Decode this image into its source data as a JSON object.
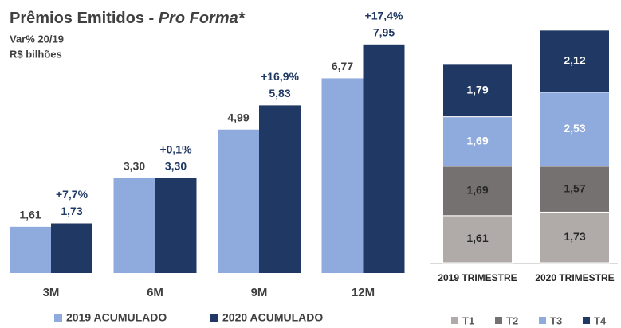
{
  "chart_data": [
    {
      "type": "bar",
      "title": [
        "Prêmios Emitidos - ",
        "Pro Forma*"
      ],
      "subtitle": [
        "Var% 20/19",
        "R$ bilhões"
      ],
      "categories": [
        "3M",
        "6M",
        "9M",
        "12M"
      ],
      "series": [
        {
          "name": "2019 ACUMULADO",
          "color": "#8faadc",
          "values": [
            1.61,
            3.3,
            4.99,
            6.77
          ],
          "value_labels": [
            "1,61",
            "3,30",
            "4,99",
            "6,77"
          ]
        },
        {
          "name": "2020 ACUMULADO",
          "color": "#1f3864",
          "values": [
            1.73,
            3.3,
            5.83,
            7.95
          ],
          "value_labels": [
            "1,73",
            "3,30",
            "5,83",
            "7,95"
          ],
          "annotations": [
            "+7,7%",
            "+0,1%",
            "+16,9%",
            "+17,4%"
          ]
        }
      ],
      "ylim": [
        0,
        8
      ]
    },
    {
      "type": "stacked_bar",
      "categories": [
        "2019 TRIMESTRE",
        "2020 TRIMESTRE"
      ],
      "series": [
        {
          "name": "T1",
          "color": "#b0aba9",
          "values": [
            1.61,
            1.73
          ],
          "value_labels": [
            "1,61",
            "1,73"
          ]
        },
        {
          "name": "T2",
          "color": "#767171",
          "values": [
            1.69,
            1.57
          ],
          "value_labels": [
            "1,69",
            "1,57"
          ]
        },
        {
          "name": "T3",
          "color": "#8faadc",
          "values": [
            1.69,
            2.53
          ],
          "value_labels": [
            "1,69",
            "2,53"
          ]
        },
        {
          "name": "T4",
          "color": "#1f3864",
          "values": [
            1.79,
            2.12
          ],
          "value_labels": [
            "1,79",
            "2,12"
          ]
        }
      ],
      "ylim": [
        0,
        8
      ]
    }
  ]
}
